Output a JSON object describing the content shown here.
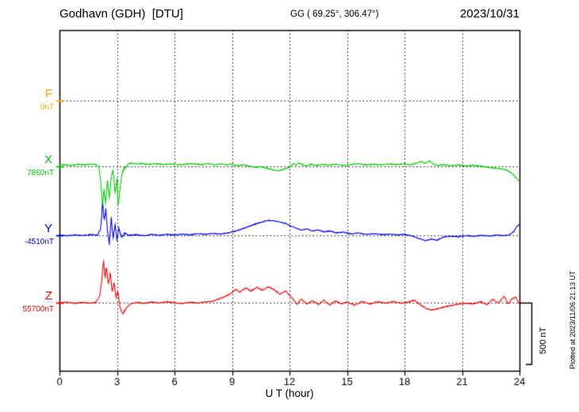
{
  "header": {
    "station": "Godhavn (GDH)  [DTU]",
    "coords": "GG ( 69.25°, 306.47°)",
    "date": "2023/10/31"
  },
  "footer_note": "Plotted at 2023/11/06 21:13 UT",
  "scale_bar": {
    "label": "500 nT",
    "nT": 500
  },
  "chart_data": {
    "type": "line",
    "title": "Godhavn (GDH) magnetogram 2023/10/31",
    "x_label": "U T (hour)",
    "x_range": [
      0,
      24
    ],
    "x_ticks": [
      0,
      3,
      6,
      9,
      12,
      15,
      18,
      21,
      24
    ],
    "grid": "dotted",
    "units": "nT offset from each component baseline",
    "scale_bar_nT": 500,
    "series": [
      {
        "name": "F",
        "baseline_label": "0nT",
        "color": "#ffa500",
        "points": []
      },
      {
        "name": "X",
        "baseline_label": "7860nT",
        "color": "#00cc00",
        "points": [
          [
            0,
            10
          ],
          [
            0.3,
            14
          ],
          [
            0.6,
            8
          ],
          [
            1,
            16
          ],
          [
            1.3,
            12
          ],
          [
            1.6,
            18
          ],
          [
            1.9,
            14
          ],
          [
            2.05,
            0
          ],
          [
            2.15,
            -120
          ],
          [
            2.25,
            -330
          ],
          [
            2.32,
            -180
          ],
          [
            2.4,
            -300
          ],
          [
            2.5,
            -120
          ],
          [
            2.6,
            -260
          ],
          [
            2.7,
            -80
          ],
          [
            2.8,
            -40
          ],
          [
            2.9,
            -220
          ],
          [
            3,
            -90
          ],
          [
            3.05,
            -330
          ],
          [
            3.15,
            -200
          ],
          [
            3.25,
            -60
          ],
          [
            3.4,
            -10
          ],
          [
            3.6,
            20
          ],
          [
            3.8,
            28
          ],
          [
            4,
            20
          ],
          [
            4.3,
            24
          ],
          [
            4.6,
            16
          ],
          [
            5,
            22
          ],
          [
            5.4,
            16
          ],
          [
            5.8,
            20
          ],
          [
            6.2,
            14
          ],
          [
            6.6,
            18
          ],
          [
            7,
            22
          ],
          [
            7.4,
            14
          ],
          [
            7.8,
            24
          ],
          [
            8.1,
            10
          ],
          [
            8.4,
            22
          ],
          [
            8.7,
            12
          ],
          [
            9,
            18
          ],
          [
            9.3,
            6
          ],
          [
            9.6,
            14
          ],
          [
            9.9,
            2
          ],
          [
            10.2,
            -8
          ],
          [
            10.5,
            -2
          ],
          [
            10.8,
            -14
          ],
          [
            11.1,
            -26
          ],
          [
            11.4,
            -36
          ],
          [
            11.7,
            -24
          ],
          [
            12,
            -6
          ],
          [
            12.2,
            24
          ],
          [
            12.35,
            8
          ],
          [
            12.5,
            28
          ],
          [
            12.7,
            12
          ],
          [
            12.9,
            2
          ],
          [
            13.1,
            18
          ],
          [
            13.4,
            8
          ],
          [
            13.7,
            16
          ],
          [
            14,
            10
          ],
          [
            14.4,
            18
          ],
          [
            14.8,
            8
          ],
          [
            15.2,
            16
          ],
          [
            15.6,
            22
          ],
          [
            16,
            12
          ],
          [
            16.4,
            18
          ],
          [
            16.8,
            12
          ],
          [
            17.2,
            20
          ],
          [
            17.6,
            14
          ],
          [
            18,
            22
          ],
          [
            18.3,
            12
          ],
          [
            18.6,
            26
          ],
          [
            18.9,
            40
          ],
          [
            19.1,
            22
          ],
          [
            19.3,
            48
          ],
          [
            19.5,
            20
          ],
          [
            19.7,
            8
          ],
          [
            20,
            14
          ],
          [
            20.4,
            6
          ],
          [
            20.8,
            12
          ],
          [
            21.2,
            4
          ],
          [
            21.6,
            10
          ],
          [
            22,
            0
          ],
          [
            22.4,
            -8
          ],
          [
            22.8,
            -16
          ],
          [
            23.2,
            -24
          ],
          [
            23.5,
            -44
          ],
          [
            23.7,
            -70
          ],
          [
            23.85,
            -100
          ],
          [
            24,
            -120
          ]
        ]
      },
      {
        "name": "Y",
        "baseline_label": "-4510nT",
        "color": "#0000ff",
        "points": [
          [
            0,
            2
          ],
          [
            0.4,
            -4
          ],
          [
            0.8,
            4
          ],
          [
            1.2,
            -2
          ],
          [
            1.6,
            6
          ],
          [
            2,
            2
          ],
          [
            2.15,
            60
          ],
          [
            2.25,
            270
          ],
          [
            2.33,
            120
          ],
          [
            2.42,
            210
          ],
          [
            2.5,
            40
          ],
          [
            2.6,
            -70
          ],
          [
            2.7,
            140
          ],
          [
            2.8,
            -20
          ],
          [
            2.9,
            90
          ],
          [
            3,
            -40
          ],
          [
            3.1,
            60
          ],
          [
            3.25,
            -20
          ],
          [
            3.4,
            20
          ],
          [
            3.6,
            0
          ],
          [
            4,
            6
          ],
          [
            4.4,
            -4
          ],
          [
            4.8,
            8
          ],
          [
            5.2,
            0
          ],
          [
            5.6,
            8
          ],
          [
            6,
            2
          ],
          [
            6.4,
            10
          ],
          [
            6.8,
            4
          ],
          [
            7.2,
            12
          ],
          [
            7.6,
            8
          ],
          [
            8,
            16
          ],
          [
            8.4,
            10
          ],
          [
            8.8,
            20
          ],
          [
            9.2,
            36
          ],
          [
            9.6,
            56
          ],
          [
            10,
            80
          ],
          [
            10.3,
            96
          ],
          [
            10.6,
            110
          ],
          [
            10.9,
            122
          ],
          [
            11.2,
            118
          ],
          [
            11.5,
            108
          ],
          [
            11.8,
            96
          ],
          [
            12,
            80
          ],
          [
            12.3,
            60
          ],
          [
            12.6,
            44
          ],
          [
            12.9,
            52
          ],
          [
            13.2,
            36
          ],
          [
            13.5,
            44
          ],
          [
            13.8,
            28
          ],
          [
            14.1,
            36
          ],
          [
            14.4,
            20
          ],
          [
            14.8,
            26
          ],
          [
            15.2,
            12
          ],
          [
            15.6,
            18
          ],
          [
            16,
            8
          ],
          [
            16.4,
            14
          ],
          [
            16.8,
            6
          ],
          [
            17.2,
            10
          ],
          [
            17.6,
            4
          ],
          [
            18,
            8
          ],
          [
            18.4,
            -6
          ],
          [
            18.8,
            -28
          ],
          [
            19.1,
            -44
          ],
          [
            19.4,
            -30
          ],
          [
            19.7,
            -40
          ],
          [
            20,
            -16
          ],
          [
            20.4,
            -6
          ],
          [
            20.8,
            -12
          ],
          [
            21.2,
            -2
          ],
          [
            21.6,
            -8
          ],
          [
            22,
            0
          ],
          [
            22.4,
            -6
          ],
          [
            22.8,
            2
          ],
          [
            23.2,
            -4
          ],
          [
            23.5,
            8
          ],
          [
            23.7,
            30
          ],
          [
            23.85,
            70
          ],
          [
            24,
            90
          ]
        ]
      },
      {
        "name": "Z",
        "baseline_label": "55700nT",
        "color": "#ff0000",
        "points": [
          [
            0,
            -4
          ],
          [
            0.4,
            4
          ],
          [
            0.8,
            -6
          ],
          [
            1.2,
            2
          ],
          [
            1.6,
            -4
          ],
          [
            1.9,
            2
          ],
          [
            2.1,
            60
          ],
          [
            2.2,
            180
          ],
          [
            2.3,
            340
          ],
          [
            2.38,
            200
          ],
          [
            2.45,
            300
          ],
          [
            2.55,
            140
          ],
          [
            2.65,
            250
          ],
          [
            2.75,
            80
          ],
          [
            2.85,
            160
          ],
          [
            2.95,
            40
          ],
          [
            3.05,
            100
          ],
          [
            3.15,
            -40
          ],
          [
            3.3,
            -90
          ],
          [
            3.5,
            -40
          ],
          [
            3.7,
            -10
          ],
          [
            4,
            2
          ],
          [
            4.4,
            -6
          ],
          [
            4.8,
            6
          ],
          [
            5.2,
            -2
          ],
          [
            5.6,
            8
          ],
          [
            6,
            0
          ],
          [
            6.4,
            -8
          ],
          [
            6.8,
            4
          ],
          [
            7.2,
            -4
          ],
          [
            7.6,
            6
          ],
          [
            8,
            12
          ],
          [
            8.3,
            30
          ],
          [
            8.6,
            48
          ],
          [
            8.9,
            70
          ],
          [
            9.2,
            110
          ],
          [
            9.4,
            85
          ],
          [
            9.7,
            120
          ],
          [
            10,
            95
          ],
          [
            10.3,
            125
          ],
          [
            10.6,
            100
          ],
          [
            10.9,
            130
          ],
          [
            11.2,
            105
          ],
          [
            11.5,
            70
          ],
          [
            11.8,
            95
          ],
          [
            12.1,
            45
          ],
          [
            12.4,
            -15
          ],
          [
            12.6,
            30
          ],
          [
            12.9,
            -10
          ],
          [
            13.2,
            15
          ],
          [
            13.5,
            -15
          ],
          [
            13.8,
            20
          ],
          [
            14.1,
            -20
          ],
          [
            14.4,
            15
          ],
          [
            14.7,
            -10
          ],
          [
            15,
            5
          ],
          [
            15.4,
            -20
          ],
          [
            15.8,
            10
          ],
          [
            16.2,
            -12
          ],
          [
            16.6,
            8
          ],
          [
            17,
            -5
          ],
          [
            17.4,
            10
          ],
          [
            17.8,
            -5
          ],
          [
            18.2,
            5
          ],
          [
            18.5,
            20
          ],
          [
            18.8,
            -15
          ],
          [
            19.1,
            -45
          ],
          [
            19.4,
            -60
          ],
          [
            19.7,
            -50
          ],
          [
            20,
            -38
          ],
          [
            20.4,
            -24
          ],
          [
            20.8,
            -12
          ],
          [
            21.2,
            -4
          ],
          [
            21.6,
            -10
          ],
          [
            22,
            8
          ],
          [
            22.3,
            -18
          ],
          [
            22.6,
            28
          ],
          [
            22.9,
            -6
          ],
          [
            23.2,
            55
          ],
          [
            23.4,
            -12
          ],
          [
            23.6,
            30
          ],
          [
            23.8,
            45
          ],
          [
            24,
            -15
          ]
        ]
      }
    ]
  }
}
